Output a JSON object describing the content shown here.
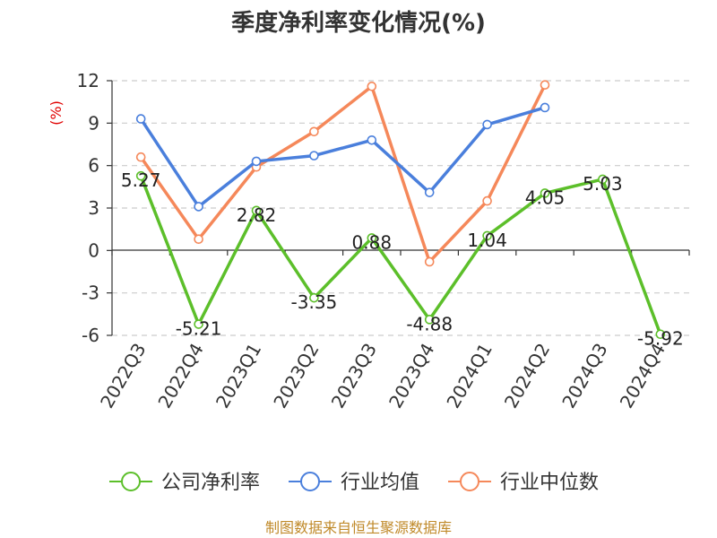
{
  "chart_data": {
    "type": "line",
    "title": "季度净利率变化情况(%)",
    "unit": "(%)",
    "ylim": [
      -6,
      12
    ],
    "yticks": [
      "12",
      "9",
      "6",
      "3",
      "0",
      "-3",
      "-6"
    ],
    "ytick_values": [
      12,
      9,
      6,
      3,
      0,
      -3,
      -6
    ],
    "categories": [
      "2022Q3",
      "2022Q4",
      "2023Q1",
      "2023Q2",
      "2023Q3",
      "2023Q4",
      "2024Q1",
      "2024Q2",
      "2024Q3",
      "2024Q4"
    ],
    "grid": true,
    "legend_position": "bottom",
    "series": [
      {
        "name": "公司净利率",
        "color": "#5cbf2a",
        "values": [
          5.27,
          -5.21,
          2.82,
          -3.35,
          0.88,
          -4.88,
          1.04,
          4.05,
          5.03,
          -5.92
        ],
        "labels": [
          "5.27",
          "-5.21",
          "2.82",
          "-3.35",
          "0.88",
          "-4.88",
          "1.04",
          "4.05",
          "5.03",
          "-5.92"
        ]
      },
      {
        "name": "行业均值",
        "color": "#4a7fdc",
        "values": [
          9.3,
          3.1,
          6.3,
          6.7,
          7.8,
          4.1,
          8.9,
          10.1,
          null,
          null
        ]
      },
      {
        "name": "行业中位数",
        "color": "#f5885a",
        "values": [
          6.6,
          0.8,
          5.9,
          8.4,
          11.6,
          -0.8,
          3.5,
          11.7,
          null,
          null
        ]
      }
    ]
  },
  "footer": {
    "source": "制图数据来自恒生聚源数据库"
  }
}
